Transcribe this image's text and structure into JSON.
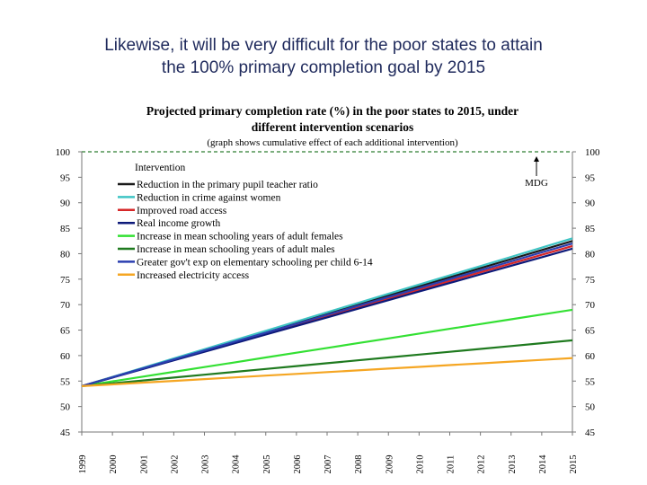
{
  "slide": {
    "title_line1": "Likewise, it will be very difficult for the poor states to attain",
    "title_line2": "the 100% primary completion goal by 2015"
  },
  "chart_data": {
    "type": "line",
    "title_line1": "Projected primary completion rate (%) in the poor states to 2015, under",
    "title_line2": "different intervention scenarios",
    "subtitle": "(graph shows cumulative effect of each additional intervention)",
    "x": [
      "1999",
      "2000",
      "2001",
      "2002",
      "2003",
      "2004",
      "2005",
      "2006",
      "2007",
      "2008",
      "2009",
      "2010",
      "2011",
      "2012",
      "2013",
      "2014",
      "2015"
    ],
    "ylim": [
      45,
      100
    ],
    "yticks": [
      45,
      50,
      55,
      60,
      65,
      70,
      75,
      80,
      85,
      90,
      95,
      100
    ],
    "target": {
      "value": 100,
      "label": "MDG",
      "color": "#2e7d32"
    },
    "legend_title": "Intervention",
    "legend_position": "top-left",
    "series": [
      {
        "name": "Reduction in the primary pupil teacher ratio",
        "color": "#1a1a1a",
        "start": 54,
        "end": 82.5
      },
      {
        "name": "Reduction in crime against women",
        "color": "#3fc4c4",
        "start": 54,
        "end": 83.0
      },
      {
        "name": "Improved road access",
        "color": "#d62728",
        "start": 54,
        "end": 81.5
      },
      {
        "name": "Real income growth",
        "color": "#0d1a7a",
        "start": 54,
        "end": 81.0
      },
      {
        "name": "Increase in mean schooling years of adult females",
        "color": "#33e033",
        "start": 54,
        "end": 69.0
      },
      {
        "name": "Increase in mean schooling years of adult males",
        "color": "#1f7a1f",
        "start": 54,
        "end": 63.0
      },
      {
        "name": "Greater gov't exp on elementary schooling per child 6-14",
        "color": "#2b3fb0",
        "start": 54,
        "end": 82.0
      },
      {
        "name": "Increased electricity access",
        "color": "#f5a623",
        "start": 54,
        "end": 59.5
      }
    ]
  }
}
